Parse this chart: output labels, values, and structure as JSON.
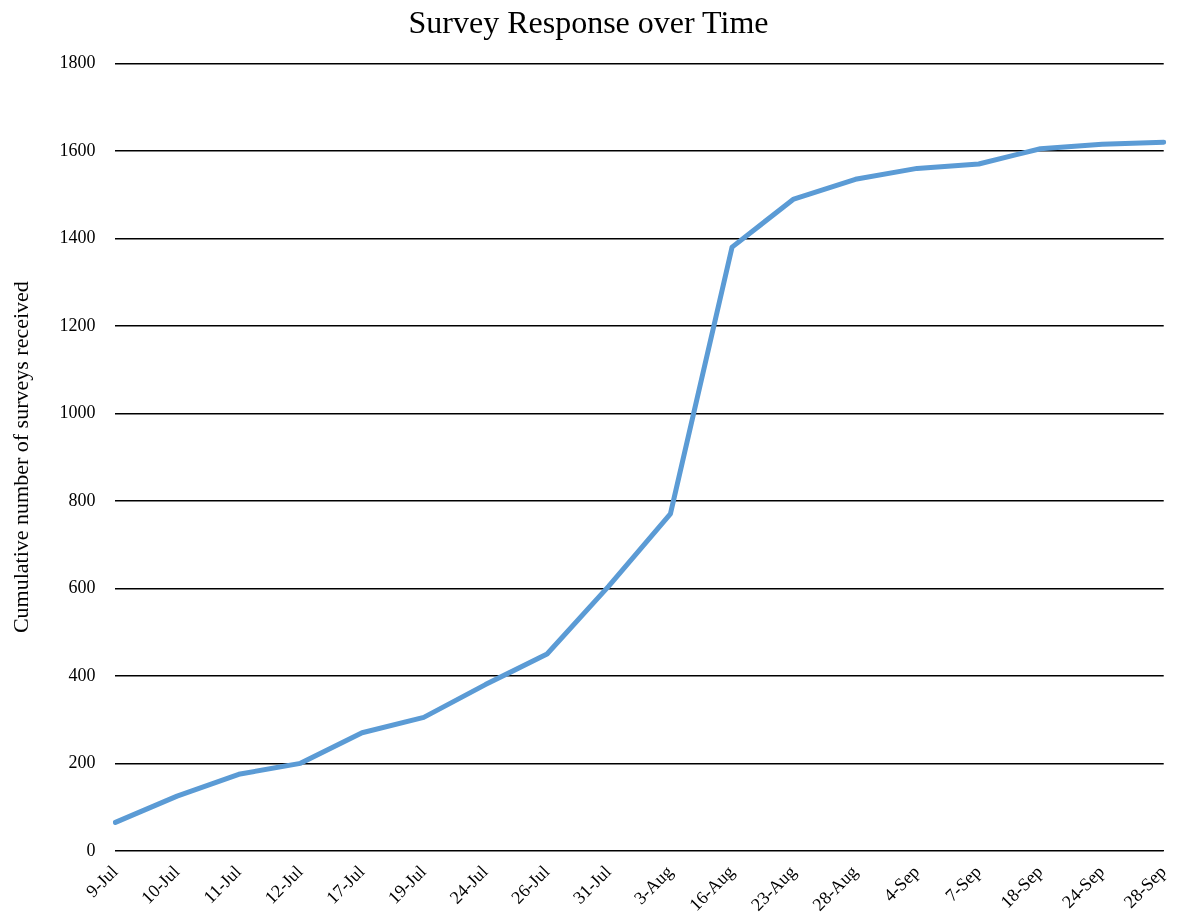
{
  "chart_data": {
    "type": "line",
    "title": "Survey Response over Time",
    "ylabel": "Cumulative number of surveys received",
    "categories": [
      "9-Jul",
      "10-Jul",
      "11-Jul",
      "12-Jul",
      "17-Jul",
      "19-Jul",
      "24-Jul",
      "26-Jul",
      "31-Jul",
      "3-Aug",
      "16-Aug",
      "23-Aug",
      "28-Aug",
      "4-Sep",
      "7-Sep",
      "18-Sep",
      "24-Sep",
      "28-Sep"
    ],
    "series": [
      {
        "color": "#5b9bd5",
        "values": [
          65,
          125,
          175,
          200,
          270,
          305,
          380,
          450,
          605,
          770,
          1380,
          1490,
          1535,
          1560,
          1570,
          1605,
          1615,
          1620
        ]
      }
    ],
    "ylim": [
      0,
      1800
    ],
    "yticks": [
      0,
      200,
      400,
      600,
      800,
      1000,
      1200,
      1400,
      1600,
      1800
    ],
    "grid": "y",
    "legend": false,
    "marker": "none",
    "line_style": "solid"
  }
}
